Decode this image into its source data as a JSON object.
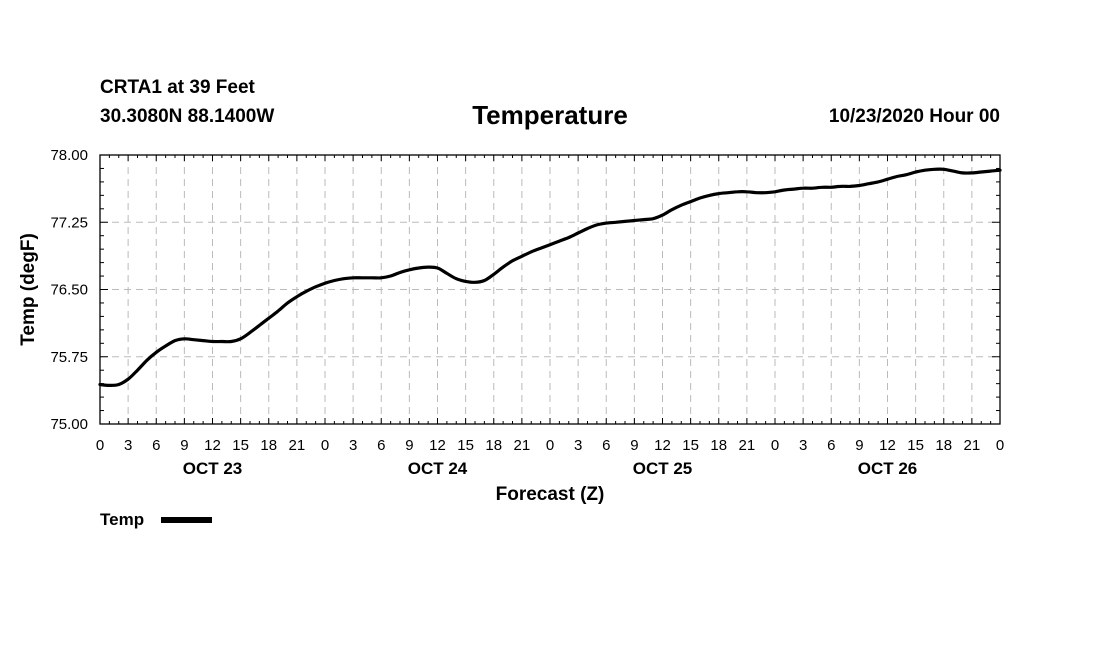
{
  "header": {
    "station": "CRTA1 at 39 Feet",
    "coords": "30.3080N 88.1400W",
    "title": "Temperature",
    "datetime": "10/23/2020 Hour 00"
  },
  "colors": {
    "line": "#000000",
    "grid": "#bbbbbb",
    "background": "#ffffff"
  },
  "chart_data": {
    "type": "line",
    "title": "Temperature",
    "xlabel": "Forecast (Z)",
    "ylabel": "Temp (degF)",
    "ylim": [
      75.0,
      78.0
    ],
    "yticks": [
      "75.00",
      "75.75",
      "76.50",
      "77.25",
      "78.00"
    ],
    "xlim": [
      0,
      96
    ],
    "xtick_labels": [
      "0",
      "3",
      "6",
      "9",
      "12",
      "15",
      "18",
      "21",
      "0",
      "3",
      "6",
      "9",
      "12",
      "15",
      "18",
      "21",
      "0",
      "3",
      "6",
      "9",
      "12",
      "15",
      "18",
      "21",
      "0",
      "3",
      "6",
      "9",
      "12",
      "15",
      "18",
      "21",
      "0"
    ],
    "day_labels": [
      {
        "label": "OCT 23",
        "hour": 12
      },
      {
        "label": "OCT 24",
        "hour": 36
      },
      {
        "label": "OCT 25",
        "hour": 60
      },
      {
        "label": "OCT 26",
        "hour": 84
      }
    ],
    "legend": "top-left below axis",
    "series": [
      {
        "name": "Temp",
        "x": [
          0,
          1,
          2,
          3,
          4,
          5,
          6,
          7,
          8,
          9,
          10,
          11,
          12,
          13,
          14,
          15,
          16,
          17,
          18,
          19,
          20,
          21,
          22,
          23,
          24,
          25,
          26,
          27,
          28,
          29,
          30,
          31,
          32,
          33,
          34,
          35,
          36,
          37,
          38,
          39,
          40,
          41,
          42,
          43,
          44,
          45,
          46,
          47,
          48,
          49,
          50,
          51,
          52,
          53,
          54,
          55,
          56,
          57,
          58,
          59,
          60,
          61,
          62,
          63,
          64,
          65,
          66,
          67,
          68,
          69,
          70,
          71,
          72,
          73,
          74,
          75,
          76,
          77,
          78,
          79,
          80,
          81,
          82,
          83,
          84,
          85,
          86,
          87,
          88,
          89,
          90,
          91,
          92,
          93,
          94,
          95,
          96
        ],
        "y": [
          75.44,
          75.43,
          75.44,
          75.5,
          75.6,
          75.71,
          75.8,
          75.87,
          75.93,
          75.95,
          75.94,
          75.93,
          75.92,
          75.92,
          75.92,
          75.95,
          76.02,
          76.1,
          76.18,
          76.26,
          76.35,
          76.42,
          76.48,
          76.53,
          76.57,
          76.6,
          76.62,
          76.63,
          76.63,
          76.63,
          76.63,
          76.65,
          76.69,
          76.72,
          76.74,
          76.75,
          76.74,
          76.68,
          76.62,
          76.59,
          76.58,
          76.6,
          76.67,
          76.75,
          76.82,
          76.87,
          76.92,
          76.96,
          77.0,
          77.04,
          77.08,
          77.13,
          77.18,
          77.22,
          77.24,
          77.25,
          77.26,
          77.27,
          77.28,
          77.29,
          77.33,
          77.39,
          77.44,
          77.48,
          77.52,
          77.55,
          77.57,
          77.58,
          77.59,
          77.59,
          77.58,
          77.58,
          77.59,
          77.61,
          77.62,
          77.63,
          77.63,
          77.64,
          77.64,
          77.65,
          77.65,
          77.66,
          77.68,
          77.7,
          77.73,
          77.76,
          77.78,
          77.81,
          77.83,
          77.84,
          77.84,
          77.82,
          77.8,
          77.8,
          77.81,
          77.82,
          77.83
        ]
      }
    ]
  }
}
